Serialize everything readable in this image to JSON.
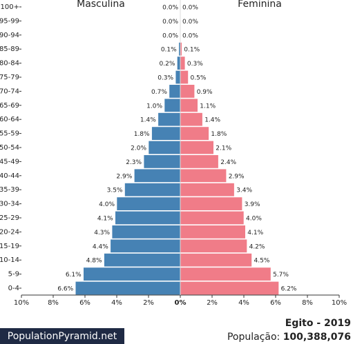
{
  "chart_data": {
    "type": "bar",
    "title": "Egito - 2019",
    "population_label": "População:",
    "population": "100,388,076",
    "source": "PopulationPyramid.net",
    "categories": [
      "100+",
      "95-99",
      "90-94",
      "85-89",
      "80-84",
      "75-79",
      "70-74",
      "65-69",
      "60-64",
      "55-59",
      "50-54",
      "45-49",
      "40-44",
      "35-39",
      "30-34",
      "25-29",
      "20-24",
      "15-19",
      "10-14",
      "5-9",
      "0-4"
    ],
    "series": [
      {
        "name": "Masculina",
        "color": "#4682b4",
        "values": [
          0.0,
          0.0,
          0.0,
          0.1,
          0.2,
          0.3,
          0.7,
          1.0,
          1.4,
          1.8,
          2.0,
          2.3,
          2.9,
          3.5,
          4.0,
          4.1,
          4.3,
          4.4,
          4.8,
          6.1,
          6.6
        ],
        "value_labels": [
          "0.0%",
          "0.0%",
          "0.0%",
          "0.1%",
          "0.2%",
          "0.3%",
          "0.7%",
          "1.0%",
          "1.4%",
          "1.8%",
          "2.0%",
          "2.3%",
          "2.9%",
          "3.5%",
          "4.0%",
          "4.1%",
          "4.3%",
          "4.4%",
          "4.8%",
          "6.1%",
          "6.6%"
        ]
      },
      {
        "name": "Feminina",
        "color": "#f07c88",
        "values": [
          0.0,
          0.0,
          0.0,
          0.1,
          0.3,
          0.5,
          0.9,
          1.1,
          1.4,
          1.8,
          2.1,
          2.4,
          2.9,
          3.4,
          3.9,
          4.0,
          4.1,
          4.2,
          4.5,
          5.7,
          6.2
        ],
        "value_labels": [
          "0.0%",
          "0.0%",
          "0.0%",
          "0.1%",
          "0.3%",
          "0.5%",
          "0.9%",
          "1.1%",
          "1.4%",
          "1.8%",
          "2.1%",
          "2.4%",
          "2.9%",
          "3.4%",
          "3.9%",
          "4.0%",
          "4.1%",
          "4.2%",
          "4.5%",
          "5.7%",
          "6.2%"
        ]
      }
    ],
    "xlim": [
      -10,
      10
    ],
    "xticks": [
      {
        "value": -10,
        "label": "10%"
      },
      {
        "value": -8,
        "label": "8%"
      },
      {
        "value": -6,
        "label": "6%"
      },
      {
        "value": -4,
        "label": "4%"
      },
      {
        "value": -2,
        "label": "2%"
      },
      {
        "value": 0,
        "label": "0%"
      },
      {
        "value": 2,
        "label": "2%"
      },
      {
        "value": 4,
        "label": "4%"
      },
      {
        "value": 6,
        "label": "6%"
      },
      {
        "value": 8,
        "label": "8%"
      },
      {
        "value": 10,
        "label": "10%"
      }
    ]
  }
}
